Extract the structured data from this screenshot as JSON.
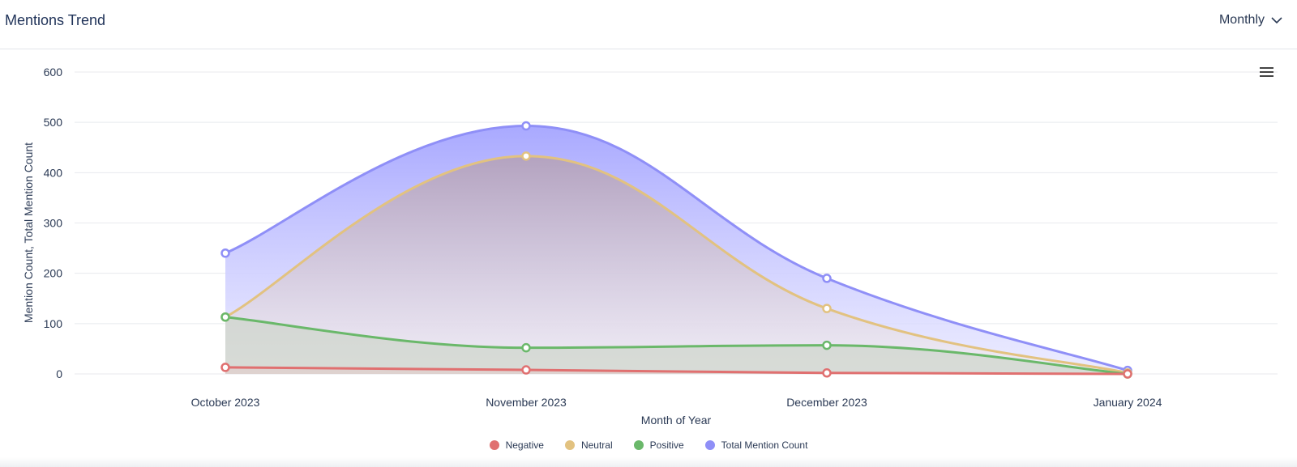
{
  "header": {
    "title": "Mentions Trend",
    "period_label": "Monthly"
  },
  "icons": {
    "period_dropdown": "chevron-down-icon",
    "chart_menu": "hamburger-menu-icon"
  },
  "chart_data": {
    "type": "area",
    "smooth": true,
    "categories": [
      "October 2023",
      "November 2023",
      "December 2023",
      "January 2024"
    ],
    "xlabel": "Month of Year",
    "ylabel": "Mention Count, Total Mention Count",
    "ylim": [
      0,
      600
    ],
    "yticks": [
      0,
      100,
      200,
      300,
      400,
      500,
      600
    ],
    "grid": true,
    "legend_position": "bottom-center",
    "series": [
      {
        "name": "Total Mention Count",
        "color": "#8f8ff7",
        "values": [
          240,
          493,
          190,
          7
        ]
      },
      {
        "name": "Neutral",
        "color": "#e2c280",
        "values": [
          113,
          433,
          130,
          2
        ]
      },
      {
        "name": "Positive",
        "color": "#6ab86a",
        "values": [
          113,
          52,
          57,
          0
        ]
      },
      {
        "name": "Negative",
        "color": "#e07070",
        "values": [
          13,
          8,
          2,
          0
        ]
      }
    ]
  },
  "legend": [
    {
      "label": "Negative",
      "color": "#e07070"
    },
    {
      "label": "Neutral",
      "color": "#e2c280"
    },
    {
      "label": "Positive",
      "color": "#6ab86a"
    },
    {
      "label": "Total Mention Count",
      "color": "#8f8ff7"
    }
  ]
}
